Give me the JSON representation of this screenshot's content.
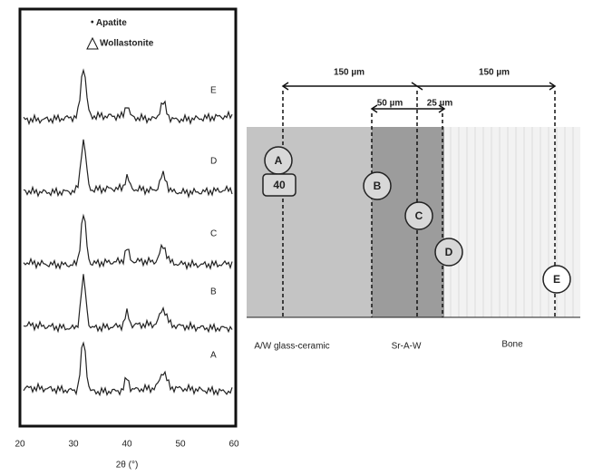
{
  "xrd": {
    "legend": [
      "Apatite",
      "Wollastonite"
    ],
    "traces": [
      "E",
      "D",
      "C",
      "B",
      "A"
    ],
    "xticks": [
      "20",
      "30",
      "40",
      "50",
      "60"
    ],
    "xlabel": "2θ (°)"
  },
  "diagram": {
    "dimensions": [
      "150 µm",
      "50 µm",
      "25 µm",
      "150 µm"
    ],
    "points": [
      "A",
      "B",
      "C",
      "D",
      "E"
    ],
    "size": "40",
    "regions": [
      "A/W glass-ceramic",
      "Sr-A-W",
      "Bone"
    ]
  }
}
